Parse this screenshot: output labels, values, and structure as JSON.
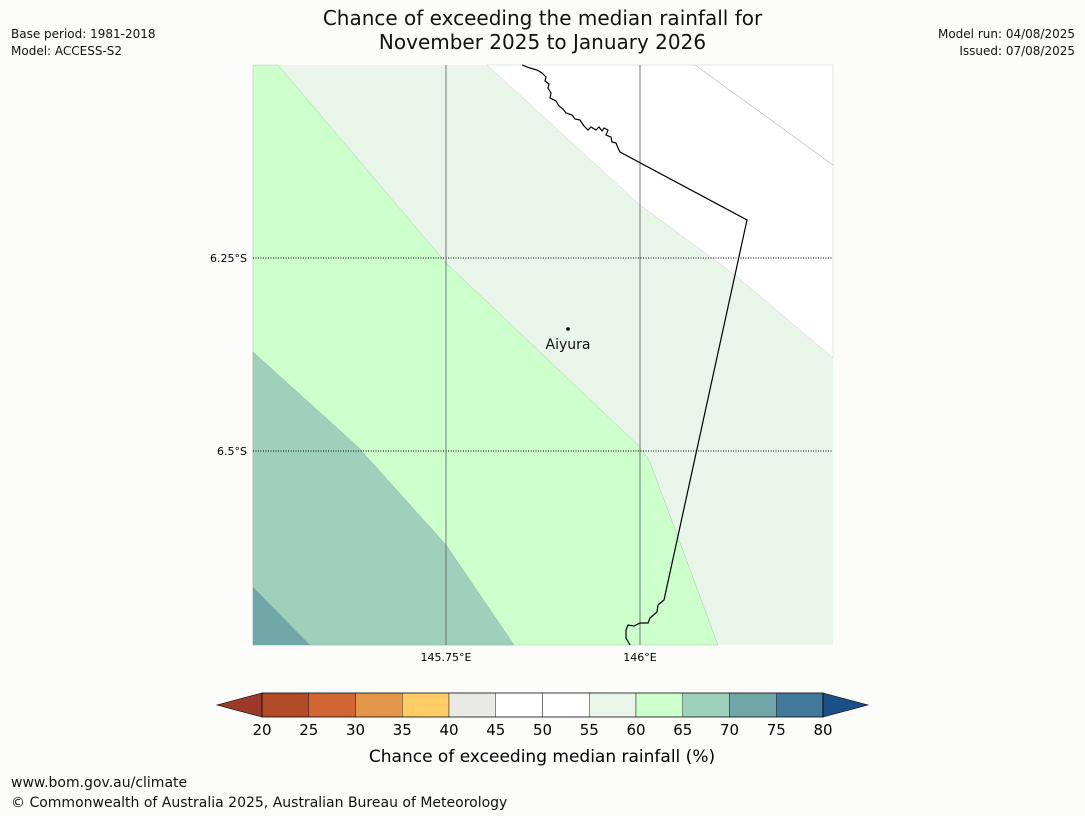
{
  "header": {
    "title_line1": "Chance of exceeding the median rainfall for",
    "title_line2": "November 2025 to January 2026",
    "base_period": "Base period: 1981-2018",
    "model": "Model: ACCESS-S2",
    "model_run": "Model run: 04/08/2025",
    "issued": "Issued: 07/08/2025"
  },
  "map": {
    "lat_labels": [
      "6.25°S",
      "6.5°S"
    ],
    "lon_labels": [
      "145.75°E",
      "146°E"
    ],
    "place": {
      "name": "Aiyura"
    },
    "zone_colors": {
      "p60_65": "#ccffcc",
      "p55_60": "#eaf5ea",
      "p50_55": "#ffffff",
      "p65_70": "#9ed0bb",
      "p70_75": "#70a6a8"
    }
  },
  "colorbar": {
    "label": "Chance of exceeding median rainfall (%)",
    "ticks": [
      "20",
      "25",
      "30",
      "35",
      "40",
      "45",
      "50",
      "55",
      "60",
      "65",
      "70",
      "75",
      "80"
    ],
    "under_color": "#9b3a2a",
    "over_color": "#1a4f87",
    "colors": [
      "#b34a28",
      "#cf6633",
      "#e39648",
      "#ffcc66",
      "#e9e9e6",
      "#ffffff",
      "#ffffff",
      "#eaf5ea",
      "#ccffcc",
      "#9ed0bb",
      "#70a6a8",
      "#42799a"
    ]
  },
  "footer": {
    "url": "www.bom.gov.au/climate",
    "copyright": "© Commonwealth of Australia 2025, Australian Bureau of Meteorology"
  }
}
